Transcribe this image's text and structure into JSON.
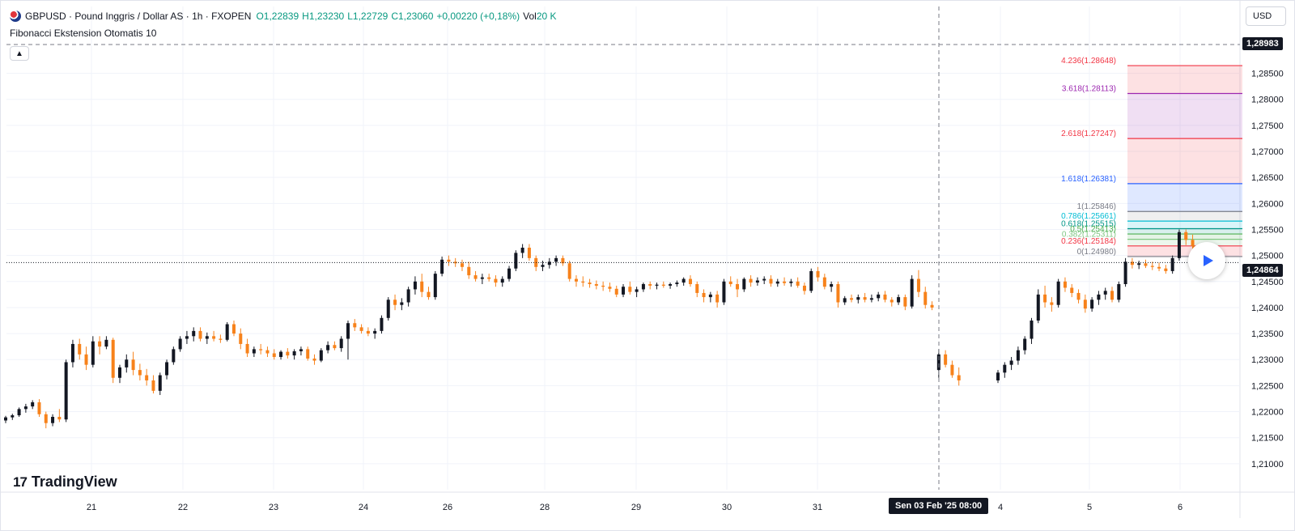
{
  "legend": {
    "symbol": "GBPUSD · Pound Inggris / Dollar AS · 1h · FXOPEN",
    "open_label": "O",
    "open": "1,22839",
    "high_label": "H",
    "high": "1,23230",
    "low_label": "L",
    "low": "1,22729",
    "close_label": "C",
    "close": "1,23060",
    "change": "+0,00220 (+0,18%)",
    "vol_label": "Vol",
    "vol": "20 K"
  },
  "indicator": {
    "name": "Fibonacci Ekstension Otomatis 10"
  },
  "currency_button": "USD",
  "crosshair_price": "1,28983",
  "last_price": "1,24864",
  "crosshair_time": "Sen 03 Feb '25   08:00",
  "brand": "TradingView",
  "brand_mark": "17",
  "colors": {
    "up": "#131722",
    "down": "#f7821b",
    "grid": "#f0f3fa",
    "axis_text": "#131722"
  },
  "chart_data": {
    "type": "candlestick",
    "ylim": [
      1.205,
      1.291
    ],
    "y_ticks": [
      "1,21000",
      "1,21500",
      "1,22000",
      "1,22500",
      "1,23000",
      "1,23500",
      "1,24000",
      "1,24500",
      "1,25000",
      "1,25500",
      "1,26000",
      "1,26500",
      "1,27000",
      "1,27500",
      "1,28000",
      "1,28500"
    ],
    "y_tick_values": [
      1.21,
      1.215,
      1.22,
      1.225,
      1.23,
      1.235,
      1.24,
      1.245,
      1.25,
      1.255,
      1.26,
      1.265,
      1.27,
      1.275,
      1.28,
      1.285
    ],
    "x_ticks": [
      "21",
      "22",
      "23",
      "24",
      "26",
      "28",
      "29",
      "30",
      "31",
      "4",
      "5",
      "6"
    ],
    "fib_levels": [
      {
        "label": "4.236(1.28648)",
        "value": 1.28648,
        "color": "#f23645"
      },
      {
        "label": "3.618(1.28113)",
        "value": 1.28113,
        "color": "#9c27b0"
      },
      {
        "label": "2.618(1.27247)",
        "value": 1.27247,
        "color": "#f23645"
      },
      {
        "label": "1.618(1.26381)",
        "value": 1.26381,
        "color": "#2962ff"
      },
      {
        "label": "1(1.25846)",
        "value": 1.25846,
        "color": "#787b86"
      },
      {
        "label": "0.786(1.25661)",
        "value": 1.25661,
        "color": "#00bcd4"
      },
      {
        "label": "0.618(1.25515)",
        "value": 1.25515,
        "color": "#009688"
      },
      {
        "label": "0.5(1.25413)",
        "value": 1.25413,
        "color": "#4caf50"
      },
      {
        "label": "0.382(1.25311)",
        "value": 1.25311,
        "color": "#81c784"
      },
      {
        "label": "0.236(1.25184)",
        "value": 1.25184,
        "color": "#f23645"
      },
      {
        "label": "0(1.24980)",
        "value": 1.2498,
        "color": "#787b86"
      }
    ],
    "candles": [
      [
        1.2183,
        1.2192,
        1.2178,
        1.2189
      ],
      [
        1.2189,
        1.2196,
        1.2184,
        1.2193
      ],
      [
        1.2193,
        1.2208,
        1.219,
        1.2205
      ],
      [
        1.2205,
        1.2215,
        1.2198,
        1.221
      ],
      [
        1.221,
        1.2222,
        1.2205,
        1.2218
      ],
      [
        1.2218,
        1.2224,
        1.219,
        1.2195
      ],
      [
        1.2195,
        1.22,
        1.2168,
        1.2178
      ],
      [
        1.2178,
        1.2195,
        1.2172,
        1.219
      ],
      [
        1.219,
        1.2205,
        1.218,
        1.2185
      ],
      [
        1.2185,
        1.23,
        1.218,
        1.2295
      ],
      [
        1.2295,
        1.2338,
        1.2285,
        1.233
      ],
      [
        1.233,
        1.234,
        1.23,
        1.231
      ],
      [
        1.231,
        1.2325,
        1.228,
        1.229
      ],
      [
        1.229,
        1.2345,
        1.2285,
        1.2335
      ],
      [
        1.2335,
        1.2345,
        1.231,
        1.2325
      ],
      [
        1.2325,
        1.2345,
        1.232,
        1.2338
      ],
      [
        1.2338,
        1.2342,
        1.2255,
        1.2265
      ],
      [
        1.2265,
        1.229,
        1.2255,
        1.2285
      ],
      [
        1.2285,
        1.231,
        1.2275,
        1.23
      ],
      [
        1.23,
        1.2315,
        1.227,
        1.228
      ],
      [
        1.228,
        1.2292,
        1.226,
        1.227
      ],
      [
        1.227,
        1.2282,
        1.225,
        1.226
      ],
      [
        1.226,
        1.227,
        1.2235,
        1.224
      ],
      [
        1.224,
        1.2275,
        1.2232,
        1.227
      ],
      [
        1.227,
        1.23,
        1.2262,
        1.2295
      ],
      [
        1.2295,
        1.2325,
        1.229,
        1.232
      ],
      [
        1.232,
        1.2345,
        1.2315,
        1.234
      ],
      [
        1.234,
        1.2355,
        1.233,
        1.2345
      ],
      [
        1.2345,
        1.2362,
        1.2335,
        1.2355
      ],
      [
        1.2355,
        1.2362,
        1.2335,
        1.234
      ],
      [
        1.234,
        1.2352,
        1.233,
        1.2345
      ],
      [
        1.2345,
        1.2355,
        1.2335,
        1.234
      ],
      [
        1.234,
        1.2348,
        1.2332,
        1.2338
      ],
      [
        1.2338,
        1.2372,
        1.2335,
        1.2368
      ],
      [
        1.2368,
        1.2375,
        1.2345,
        1.235
      ],
      [
        1.235,
        1.236,
        1.232,
        1.233
      ],
      [
        1.233,
        1.234,
        1.2305,
        1.2312
      ],
      [
        1.2312,
        1.2325,
        1.2305,
        1.232
      ],
      [
        1.232,
        1.233,
        1.231,
        1.2318
      ],
      [
        1.2318,
        1.2325,
        1.2305,
        1.2312
      ],
      [
        1.2312,
        1.232,
        1.23,
        1.2305
      ],
      [
        1.2305,
        1.2318,
        1.23,
        1.2315
      ],
      [
        1.2315,
        1.2322,
        1.2302,
        1.2308
      ],
      [
        1.2308,
        1.232,
        1.23,
        1.2316
      ],
      [
        1.2316,
        1.2325,
        1.2308,
        1.232
      ],
      [
        1.232,
        1.2325,
        1.2298,
        1.2302
      ],
      [
        1.2302,
        1.231,
        1.229,
        1.2298
      ],
      [
        1.2298,
        1.2322,
        1.2295,
        1.2318
      ],
      [
        1.2318,
        1.2335,
        1.2312,
        1.2328
      ],
      [
        1.2328,
        1.2335,
        1.2318,
        1.2322
      ],
      [
        1.2322,
        1.2345,
        1.2315,
        1.234
      ],
      [
        1.234,
        1.2375,
        1.23,
        1.237
      ],
      [
        1.237,
        1.2378,
        1.2355,
        1.2362
      ],
      [
        1.2362,
        1.2368,
        1.235,
        1.2355
      ],
      [
        1.2355,
        1.2362,
        1.2345,
        1.235
      ],
      [
        1.235,
        1.236,
        1.234,
        1.2355
      ],
      [
        1.2355,
        1.2385,
        1.235,
        1.238
      ],
      [
        1.238,
        1.242,
        1.2375,
        1.2415
      ],
      [
        1.2415,
        1.2425,
        1.2395,
        1.2405
      ],
      [
        1.2405,
        1.2418,
        1.2395,
        1.241
      ],
      [
        1.241,
        1.244,
        1.2402,
        1.2435
      ],
      [
        1.2435,
        1.246,
        1.2425,
        1.245
      ],
      [
        1.245,
        1.2465,
        1.242,
        1.243
      ],
      [
        1.243,
        1.244,
        1.2415,
        1.242
      ],
      [
        1.242,
        1.247,
        1.2415,
        1.2465
      ],
      [
        1.2465,
        1.2498,
        1.246,
        1.2492
      ],
      [
        1.2492,
        1.25,
        1.248,
        1.2488
      ],
      [
        1.2488,
        1.2495,
        1.2478,
        1.2485
      ],
      [
        1.2485,
        1.2492,
        1.247,
        1.2478
      ],
      [
        1.2478,
        1.2488,
        1.2455,
        1.2462
      ],
      [
        1.2462,
        1.247,
        1.245,
        1.2455
      ],
      [
        1.2455,
        1.2465,
        1.2445,
        1.2458
      ],
      [
        1.2458,
        1.2465,
        1.245,
        1.2455
      ],
      [
        1.2455,
        1.2462,
        1.244,
        1.2448
      ],
      [
        1.2448,
        1.246,
        1.244,
        1.2455
      ],
      [
        1.2455,
        1.248,
        1.245,
        1.2475
      ],
      [
        1.2475,
        1.251,
        1.247,
        1.2505
      ],
      [
        1.2505,
        1.2522,
        1.2495,
        1.2515
      ],
      [
        1.2515,
        1.2522,
        1.249,
        1.2495
      ],
      [
        1.2495,
        1.25,
        1.247,
        1.2478
      ],
      [
        1.2478,
        1.249,
        1.247,
        1.2482
      ],
      [
        1.2482,
        1.2495,
        1.2475,
        1.2488
      ],
      [
        1.2488,
        1.25,
        1.248,
        1.2495
      ],
      [
        1.2495,
        1.25,
        1.248,
        1.2485
      ],
      [
        1.2485,
        1.249,
        1.245,
        1.2455
      ],
      [
        1.2455,
        1.2462,
        1.244,
        1.245
      ],
      [
        1.245,
        1.246,
        1.244,
        1.2448
      ],
      [
        1.2448,
        1.2455,
        1.2438,
        1.2445
      ],
      [
        1.2445,
        1.2452,
        1.2435,
        1.2442
      ],
      [
        1.2442,
        1.245,
        1.2432,
        1.244
      ],
      [
        1.244,
        1.2448,
        1.243,
        1.2436
      ],
      [
        1.2436,
        1.2442,
        1.242,
        1.2425
      ],
      [
        1.2425,
        1.2445,
        1.242,
        1.244
      ],
      [
        1.244,
        1.245,
        1.2425,
        1.243
      ],
      [
        1.243,
        1.244,
        1.242,
        1.2435
      ],
      [
        1.2435,
        1.2448,
        1.243,
        1.2445
      ],
      [
        1.2445,
        1.245,
        1.2435,
        1.2442
      ],
      [
        1.2442,
        1.2448,
        1.2435,
        1.2444
      ],
      [
        1.2444,
        1.245,
        1.2438,
        1.2442
      ],
      [
        1.2442,
        1.2448,
        1.2436,
        1.2445
      ],
      [
        1.2445,
        1.2452,
        1.244,
        1.2448
      ],
      [
        1.2448,
        1.2458,
        1.2442,
        1.2455
      ],
      [
        1.2455,
        1.2462,
        1.244,
        1.2445
      ],
      [
        1.2445,
        1.245,
        1.242,
        1.2428
      ],
      [
        1.2428,
        1.2435,
        1.241,
        1.242
      ],
      [
        1.242,
        1.243,
        1.241,
        1.2425
      ],
      [
        1.2425,
        1.2432,
        1.24,
        1.241
      ],
      [
        1.241,
        1.2455,
        1.2405,
        1.245
      ],
      [
        1.245,
        1.246,
        1.244,
        1.2445
      ],
      [
        1.2445,
        1.2455,
        1.242,
        1.2435
      ],
      [
        1.2435,
        1.2458,
        1.243,
        1.2455
      ],
      [
        1.2455,
        1.2462,
        1.244,
        1.2448
      ],
      [
        1.2448,
        1.2458,
        1.2442,
        1.2452
      ],
      [
        1.2452,
        1.246,
        1.2445,
        1.2455
      ],
      [
        1.2455,
        1.2462,
        1.244,
        1.2446
      ],
      [
        1.2446,
        1.2455,
        1.244,
        1.245
      ],
      [
        1.245,
        1.2458,
        1.2442,
        1.2447
      ],
      [
        1.2447,
        1.2455,
        1.244,
        1.245
      ],
      [
        1.245,
        1.2458,
        1.2438,
        1.2442
      ],
      [
        1.2442,
        1.2448,
        1.2425,
        1.2432
      ],
      [
        1.2432,
        1.2475,
        1.2428,
        1.247
      ],
      [
        1.247,
        1.2478,
        1.245,
        1.2458
      ],
      [
        1.2458,
        1.2465,
        1.2435,
        1.244
      ],
      [
        1.244,
        1.245,
        1.243,
        1.2445
      ],
      [
        1.2445,
        1.245,
        1.24,
        1.241
      ],
      [
        1.241,
        1.2422,
        1.2405,
        1.2418
      ],
      [
        1.2418,
        1.2425,
        1.241,
        1.2415
      ],
      [
        1.2415,
        1.2425,
        1.2408,
        1.242
      ],
      [
        1.242,
        1.2428,
        1.241,
        1.2415
      ],
      [
        1.2415,
        1.2425,
        1.241,
        1.2418
      ],
      [
        1.2418,
        1.243,
        1.2412,
        1.2425
      ],
      [
        1.2425,
        1.2432,
        1.241,
        1.2415
      ],
      [
        1.2415,
        1.242,
        1.2402,
        1.241
      ],
      [
        1.241,
        1.2425,
        1.2405,
        1.242
      ],
      [
        1.242,
        1.2425,
        1.2395,
        1.2402
      ],
      [
        1.2402,
        1.2462,
        1.2398,
        1.2455
      ],
      [
        1.2455,
        1.2472,
        1.242,
        1.243
      ],
      [
        1.243,
        1.244,
        1.2398,
        1.2405
      ],
      [
        1.2405,
        1.2412,
        1.2395,
        1.24
      ],
      [
        1.228,
        1.232,
        1.2265,
        1.231
      ],
      [
        1.231,
        1.2318,
        1.2285,
        1.229
      ],
      [
        1.229,
        1.2298,
        1.2265,
        1.227
      ],
      [
        1.227,
        1.2285,
        1.225,
        1.226
      ],
      [
        1.226,
        1.228,
        1.2255,
        1.2275
      ],
      [
        1.2275,
        1.2295,
        1.2265,
        1.229
      ],
      [
        1.229,
        1.2305,
        1.228,
        1.2298
      ],
      [
        1.2298,
        1.2325,
        1.229,
        1.2318
      ],
      [
        1.2318,
        1.2345,
        1.231,
        1.234
      ],
      [
        1.234,
        1.238,
        1.233,
        1.2375
      ],
      [
        1.2375,
        1.2435,
        1.237,
        1.2425
      ],
      [
        1.2425,
        1.2442,
        1.24,
        1.241
      ],
      [
        1.241,
        1.242,
        1.2392,
        1.2405
      ],
      [
        1.2405,
        1.2455,
        1.24,
        1.245
      ],
      [
        1.245,
        1.2458,
        1.243,
        1.2438
      ],
      [
        1.2438,
        1.2445,
        1.242,
        1.2428
      ],
      [
        1.2428,
        1.2435,
        1.2408,
        1.2415
      ],
      [
        1.2415,
        1.2425,
        1.239,
        1.2398
      ],
      [
        1.2398,
        1.242,
        1.2392,
        1.2415
      ],
      [
        1.2415,
        1.2432,
        1.2405,
        1.2425
      ],
      [
        1.2425,
        1.2438,
        1.2415,
        1.2432
      ],
      [
        1.2432,
        1.244,
        1.241,
        1.2415
      ],
      [
        1.2415,
        1.245,
        1.241,
        1.2445
      ],
      [
        1.2445,
        1.2495,
        1.244,
        1.2488
      ],
      [
        1.2488,
        1.2495,
        1.2475,
        1.2482
      ],
      [
        1.2482,
        1.249,
        1.2474,
        1.2485
      ],
      [
        1.2485,
        1.2492,
        1.2476,
        1.248
      ],
      [
        1.248,
        1.2488,
        1.2472,
        1.2478
      ],
      [
        1.2478,
        1.2486,
        1.247,
        1.2475
      ],
      [
        1.2475,
        1.2482,
        1.2465,
        1.247
      ],
      [
        1.247,
        1.25,
        1.2465,
        1.2495
      ],
      [
        1.2495,
        1.255,
        1.249,
        1.2545
      ],
      [
        1.2545,
        1.255,
        1.252,
        1.253
      ],
      [
        1.253,
        1.254,
        1.251,
        1.2518
      ],
      [
        1.2518,
        1.2525,
        1.2505,
        1.2512
      ],
      [
        1.2512,
        1.2518,
        1.25,
        1.2505
      ],
      [
        1.2505,
        1.2512,
        1.2498,
        1.2502
      ],
      [
        1.2502,
        1.2508,
        1.2495,
        1.25
      ],
      [
        1.25,
        1.2506,
        1.2494,
        1.2498
      ]
    ]
  }
}
